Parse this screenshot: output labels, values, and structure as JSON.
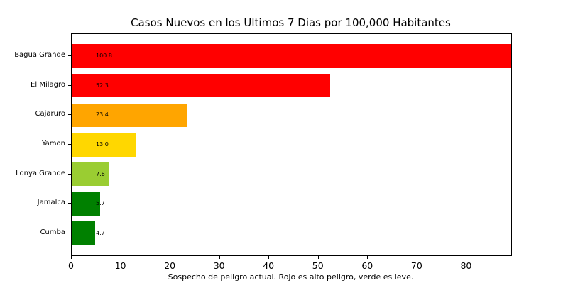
{
  "chart_data": {
    "type": "bar",
    "orientation": "horizontal",
    "title": "Casos Nuevos en los Ultimos 7 Dias por 100,000 Habitantes",
    "xlabel": "Sospecho de peligro actual. Rojo es alto peligro, verde es leve.",
    "ylabel": "",
    "categories": [
      "Bagua Grande",
      "El Milagro",
      "Cajaruro",
      "Yamon",
      "Lonya Grande",
      "Jamalca",
      "Cumba"
    ],
    "values": [
      100.8,
      52.3,
      23.4,
      13.0,
      7.6,
      5.7,
      4.7
    ],
    "value_labels": [
      "100.8",
      "52.3",
      "23.4",
      "13.0",
      "7.6",
      "5.7",
      "4.7"
    ],
    "bar_colors": [
      "#ff0000",
      "#ff0000",
      "#ffa500",
      "#ffd700",
      "#9acd32",
      "#008000",
      "#008000"
    ],
    "xticks": [
      0,
      10,
      20,
      30,
      40,
      50,
      60,
      70,
      80
    ],
    "xlim": [
      0,
      89
    ],
    "grid": false,
    "legend_position": "none",
    "background_color": "#ffffff",
    "text_color": "#000000",
    "bar_clipped_at_right_edge": "Bagua Grande"
  }
}
